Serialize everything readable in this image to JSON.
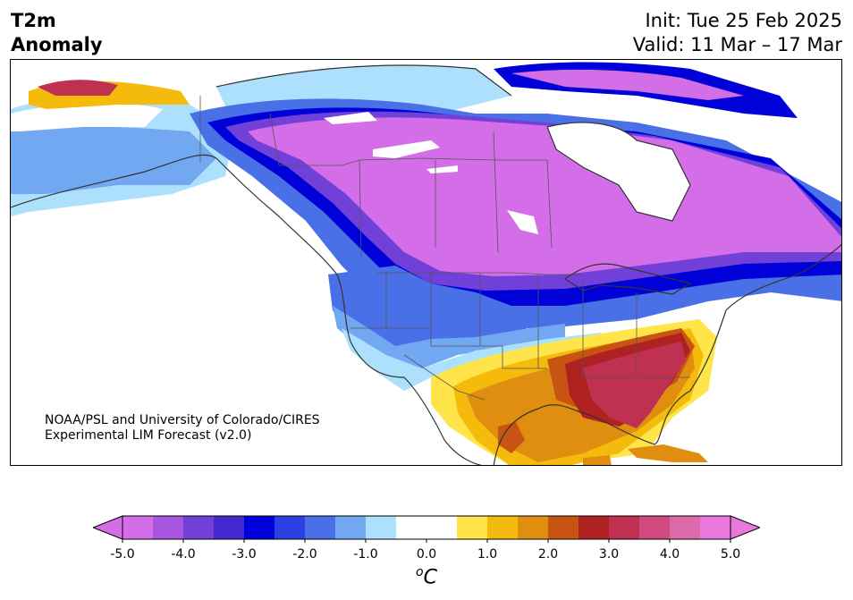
{
  "header": {
    "title_line1": "T2m",
    "title_line2": "Anomaly",
    "init": "Init: Tue 25 Feb 2025",
    "valid": "Valid: 11 Mar – 17 Mar"
  },
  "credit": {
    "line1": "NOAA/PSL and University of Colorado/CIRES",
    "line2": "Experimental LIM Forecast (v2.0)"
  },
  "colorbar": {
    "units_symbol": "o",
    "units_letter": "C",
    "ticks": [
      "-5.0",
      "-4.0",
      "-3.0",
      "-2.0",
      "-1.0",
      "0.0",
      "1.0",
      "2.0",
      "3.0",
      "4.0",
      "5.0"
    ],
    "colors": [
      "#d46ee8",
      "#a855e0",
      "#7040d8",
      "#4628d0",
      "#0000d8",
      "#2a40e0",
      "#4a70e8",
      "#72a8f2",
      "#ace0fc",
      "#ffffff",
      "#ffffff",
      "#ffe44a",
      "#f4ba0c",
      "#e08e10",
      "#c85414",
      "#b02222",
      "#c03050",
      "#d04a80",
      "#dc6aa8",
      "#e878dc"
    ],
    "under_color": "#d46ee8",
    "over_color": "#e878dc"
  },
  "map": {
    "region": "North America",
    "regions": [
      {
        "name": "Canada / northern Plains",
        "anomaly": "below -5.0"
      },
      {
        "name": "Southeast US / Florida",
        "anomaly": "3.0 to 4.0"
      },
      {
        "name": "Mexico",
        "anomaly": "1.0 to 2.5"
      }
    ]
  }
}
